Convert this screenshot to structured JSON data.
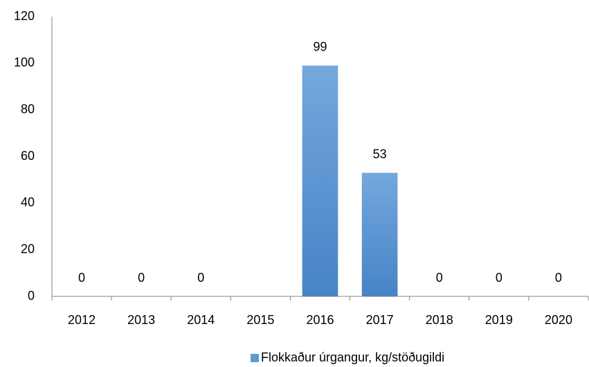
{
  "chart_data": {
    "type": "bar",
    "categories": [
      "2012",
      "2013",
      "2014",
      "2015",
      "2016",
      "2017",
      "2018",
      "2019",
      "2020"
    ],
    "series": [
      {
        "name": "Flokkaður úrgangur, kg/stöðugildi",
        "color": "#5b9bd5",
        "values": [
          0,
          0,
          0,
          null,
          99,
          53,
          0,
          0,
          0
        ]
      }
    ],
    "ylim": [
      0,
      120
    ],
    "yticks": [
      0,
      20,
      40,
      60,
      80,
      100,
      120
    ],
    "grid": false,
    "legend": "bottom"
  }
}
